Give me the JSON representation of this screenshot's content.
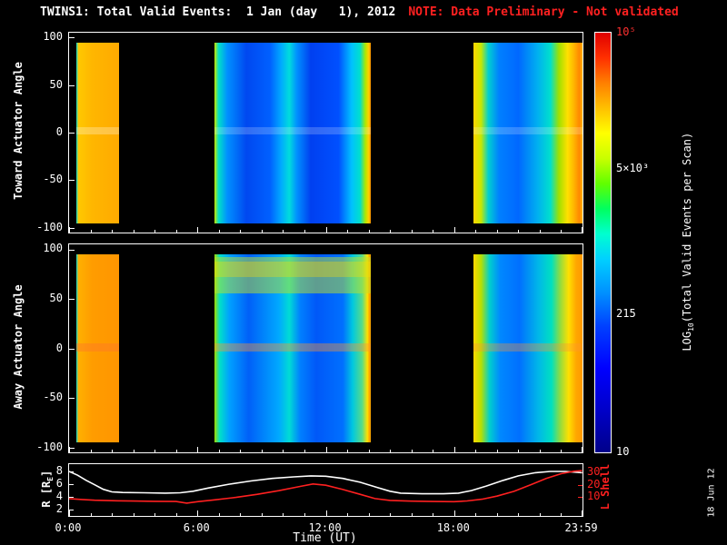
{
  "title": "TWINS1: Total Valid Events:  1 Jan (day   1), 2012",
  "note": "NOTE: Data Preliminary - Not validated",
  "datestamp": "18 Jun 12",
  "axes": {
    "time_label": "Time (UT)",
    "time_ticks": [
      {
        "h": 0,
        "label": "0:00"
      },
      {
        "h": 6,
        "label": "6:00"
      },
      {
        "h": 12,
        "label": "12:00"
      },
      {
        "h": 18,
        "label": "18:00"
      },
      {
        "h": 23.983,
        "label": "23:59"
      }
    ]
  },
  "colorbar": {
    "label_pre": "LOG",
    "label_sub": "10",
    "label_post": "(Total Valid Events per Scan)",
    "ticks": [
      {
        "label": "10⁵",
        "frac": 1.0,
        "color": "#ff3030"
      },
      {
        "label": "5×10³",
        "frac": 0.675,
        "color": "#ffffff"
      },
      {
        "label": "215",
        "frac": 0.33,
        "color": "#ffffff"
      },
      {
        "label": "10",
        "frac": 0.0,
        "color": "#ffffff"
      }
    ],
    "gradient": [
      [
        0.0,
        "#00008a"
      ],
      [
        0.1,
        "#0000c8"
      ],
      [
        0.2,
        "#0000ff"
      ],
      [
        0.3,
        "#0040ff"
      ],
      [
        0.38,
        "#0090ff"
      ],
      [
        0.46,
        "#00d0ff"
      ],
      [
        0.52,
        "#00ffd0"
      ],
      [
        0.58,
        "#00ff60"
      ],
      [
        0.64,
        "#60ff00"
      ],
      [
        0.7,
        "#c8ff00"
      ],
      [
        0.76,
        "#ffff00"
      ],
      [
        0.82,
        "#ffc000"
      ],
      [
        0.88,
        "#ff8000"
      ],
      [
        0.94,
        "#ff3000"
      ],
      [
        1.0,
        "#e00000"
      ]
    ]
  },
  "chart_data": {
    "type": "heatmap",
    "title": "TWINS1: Total Valid Events: 1 Jan (day 1), 2012",
    "xlabel": "Time (UT)",
    "x_range_hours": [
      0,
      24
    ],
    "color_scale": {
      "label": "LOG10(Total Valid Events per Scan)",
      "min": 10,
      "max": 100000,
      "tick_values": [
        10,
        215,
        5000,
        100000
      ]
    },
    "heatmaps": [
      {
        "name": "toward",
        "ylabel": "Toward Actuator Angle",
        "yticks": [
          100,
          50,
          0,
          -50,
          -100
        ],
        "y_display_range": [
          -105,
          105
        ],
        "segments": [
          {
            "t0": 0.35,
            "t1": 2.35,
            "y_top": 95,
            "y_bot": -95,
            "stops": [
              [
                0.35,
                "#00dcdc"
              ],
              [
                0.45,
                "#ffc800"
              ],
              [
                1.1,
                "#ffb600"
              ],
              [
                2.35,
                "#ffaa00"
              ]
            ],
            "bands": [
              {
                "y0": 6,
                "y1": -2,
                "color": "rgba(255,255,255,0.28)"
              }
            ]
          },
          {
            "t0": 6.8,
            "t1": 14.1,
            "y_top": 95,
            "y_bot": -95,
            "stops": [
              [
                6.8,
                "#c8e800"
              ],
              [
                7.0,
                "#00e0c8"
              ],
              [
                7.4,
                "#0090ff"
              ],
              [
                8.3,
                "#0048f0"
              ],
              [
                9.4,
                "#0060ff"
              ],
              [
                9.9,
                "#00a8ff"
              ],
              [
                10.3,
                "#00dcdc"
              ],
              [
                10.65,
                "#0090ff"
              ],
              [
                11.3,
                "#0040f0"
              ],
              [
                12.6,
                "#0050ff"
              ],
              [
                13.2,
                "#00c0ff"
              ],
              [
                13.6,
                "#00e0cc"
              ],
              [
                13.85,
                "#b0e800"
              ],
              [
                14.0,
                "#ffd000"
              ],
              [
                14.1,
                "#ff9000"
              ]
            ],
            "bands": [
              {
                "y0": 6,
                "y1": -2,
                "color": "rgba(255,255,255,0.20)"
              }
            ]
          },
          {
            "t0": 18.9,
            "t1": 24.0,
            "y_top": 95,
            "y_bot": -95,
            "stops": [
              [
                18.9,
                "#ffd400"
              ],
              [
                19.25,
                "#c8e800"
              ],
              [
                19.6,
                "#00d0d0"
              ],
              [
                20.1,
                "#0080ff"
              ],
              [
                21.0,
                "#0068ff"
              ],
              [
                21.9,
                "#00b0f0"
              ],
              [
                22.5,
                "#00e0cc"
              ],
              [
                22.9,
                "#a0e000"
              ],
              [
                23.3,
                "#ffe000"
              ],
              [
                23.6,
                "#ffb400"
              ],
              [
                23.85,
                "#ff8800"
              ],
              [
                24.0,
                "#ffae00"
              ]
            ],
            "bands": [
              {
                "y0": 6,
                "y1": -2,
                "color": "rgba(255,255,255,0.20)"
              }
            ]
          }
        ]
      },
      {
        "name": "away",
        "ylabel": "Away Actuator Angle",
        "yticks": [
          100,
          50,
          0,
          -50,
          -100
        ],
        "y_display_range": [
          -105,
          105
        ],
        "segments": [
          {
            "t0": 0.35,
            "t1": 2.35,
            "y_top": 95,
            "y_bot": -95,
            "stops": [
              [
                0.35,
                "#00dcdc"
              ],
              [
                0.45,
                "#ffb000"
              ],
              [
                1.1,
                "#ff9c00"
              ],
              [
                2.35,
                "#ff9600"
              ]
            ],
            "bands": [
              {
                "y0": 5,
                "y1": -3,
                "color": "rgba(255,120,40,0.45)"
              }
            ]
          },
          {
            "t0": 6.8,
            "t1": 14.1,
            "y_top": 95,
            "y_bot": -95,
            "stops": [
              [
                6.8,
                "#a0dc00"
              ],
              [
                7.05,
                "#00e0c8"
              ],
              [
                7.5,
                "#00a0ff"
              ],
              [
                8.4,
                "#0060f8"
              ],
              [
                9.8,
                "#00a8ff"
              ],
              [
                10.3,
                "#00dcd4"
              ],
              [
                10.8,
                "#0080ff"
              ],
              [
                11.55,
                "#0058f8"
              ],
              [
                12.8,
                "#0070ff"
              ],
              [
                13.25,
                "#00c8e0"
              ],
              [
                13.7,
                "#58dc88"
              ],
              [
                13.95,
                "#ffe000"
              ],
              [
                14.05,
                "#ff9800"
              ],
              [
                14.1,
                "#ffb400"
              ]
            ],
            "bands": [
              {
                "y0": 92,
                "y1": 55,
                "color": "rgba(190,225,40,0.50)"
              },
              {
                "y0": 88,
                "y1": 72,
                "color": "rgba(255,220,0,0.35)"
              },
              {
                "y0": 5,
                "y1": -3,
                "color": "rgba(255,150,50,0.40)"
              }
            ]
          },
          {
            "t0": 18.9,
            "t1": 24.0,
            "y_top": 95,
            "y_bot": -95,
            "stops": [
              [
                18.9,
                "#ffd800"
              ],
              [
                19.25,
                "#b8e000"
              ],
              [
                19.65,
                "#00d0cc"
              ],
              [
                20.15,
                "#0088ff"
              ],
              [
                21.05,
                "#0070ff"
              ],
              [
                21.95,
                "#00b8e8"
              ],
              [
                22.55,
                "#00e0c0"
              ],
              [
                22.95,
                "#90dc40"
              ],
              [
                23.35,
                "#ffe000"
              ],
              [
                23.7,
                "#ffa800"
              ],
              [
                24.0,
                "#ff9800"
              ]
            ],
            "bands": [
              {
                "y0": 5,
                "y1": -3,
                "color": "rgba(255,150,50,0.35)"
              }
            ]
          }
        ]
      }
    ],
    "line_panel": {
      "ylabel_pre": "R [R",
      "ylabel_sub": "E",
      "ylabel_post": "]",
      "yticks_left": [
        8,
        6,
        4,
        2
      ],
      "left_anchors": [
        [
          2,
          0.88
        ],
        [
          8,
          0.14
        ]
      ],
      "ylabel_right": "L Shell",
      "yticks_right": [
        30,
        20,
        10
      ],
      "right_anchors": [
        [
          10,
          0.63
        ],
        [
          30,
          0.16
        ]
      ],
      "series": [
        {
          "name": "R [RE]",
          "color": "#ffffff",
          "axis": "left",
          "points": [
            [
              0,
              8.0
            ],
            [
              0.4,
              7.4
            ],
            [
              0.8,
              6.6
            ],
            [
              1.2,
              5.9
            ],
            [
              1.6,
              5.2
            ],
            [
              2.0,
              4.8
            ],
            [
              2.5,
              4.7
            ],
            [
              3.5,
              4.65
            ],
            [
              4.5,
              4.6
            ],
            [
              5.2,
              4.65
            ],
            [
              5.8,
              4.9
            ],
            [
              6.5,
              5.4
            ],
            [
              7.5,
              6.0
            ],
            [
              8.5,
              6.5
            ],
            [
              9.5,
              6.9
            ],
            [
              10.5,
              7.15
            ],
            [
              11.3,
              7.3
            ],
            [
              12.0,
              7.25
            ],
            [
              12.8,
              6.9
            ],
            [
              13.6,
              6.3
            ],
            [
              14.4,
              5.5
            ],
            [
              15.0,
              4.9
            ],
            [
              15.5,
              4.6
            ],
            [
              16.5,
              4.5
            ],
            [
              17.5,
              4.5
            ],
            [
              18.2,
              4.6
            ],
            [
              18.8,
              5.0
            ],
            [
              19.5,
              5.7
            ],
            [
              20.3,
              6.6
            ],
            [
              21.0,
              7.3
            ],
            [
              21.8,
              7.8
            ],
            [
              22.5,
              8.0
            ],
            [
              23.2,
              8.0
            ],
            [
              23.98,
              7.8
            ]
          ]
        },
        {
          "name": "L Shell",
          "color": "#ff2020",
          "axis": "right",
          "points": [
            [
              0,
              8.5
            ],
            [
              0.6,
              7.8
            ],
            [
              1.2,
              7.2
            ],
            [
              2.0,
              6.8
            ],
            [
              3.0,
              6.5
            ],
            [
              4.0,
              6.3
            ],
            [
              5.0,
              6.1
            ],
            [
              5.5,
              4.8
            ],
            [
              6.0,
              6.0
            ],
            [
              6.8,
              7.5
            ],
            [
              7.8,
              9.5
            ],
            [
              8.8,
              12.0
            ],
            [
              9.8,
              15.0
            ],
            [
              10.8,
              18.5
            ],
            [
              11.4,
              20.5
            ],
            [
              12.0,
              19.5
            ],
            [
              12.8,
              16.0
            ],
            [
              13.6,
              12.0
            ],
            [
              14.3,
              8.5
            ],
            [
              15.0,
              7.0
            ],
            [
              16.0,
              6.4
            ],
            [
              17.0,
              6.1
            ],
            [
              18.0,
              6.0
            ],
            [
              18.6,
              6.6
            ],
            [
              19.3,
              8.0
            ],
            [
              20.0,
              10.5
            ],
            [
              20.8,
              14.5
            ],
            [
              21.6,
              20.0
            ],
            [
              22.3,
              25.0
            ],
            [
              23.0,
              29.0
            ],
            [
              23.6,
              31.0
            ],
            [
              23.98,
              31.5
            ]
          ]
        }
      ]
    }
  }
}
